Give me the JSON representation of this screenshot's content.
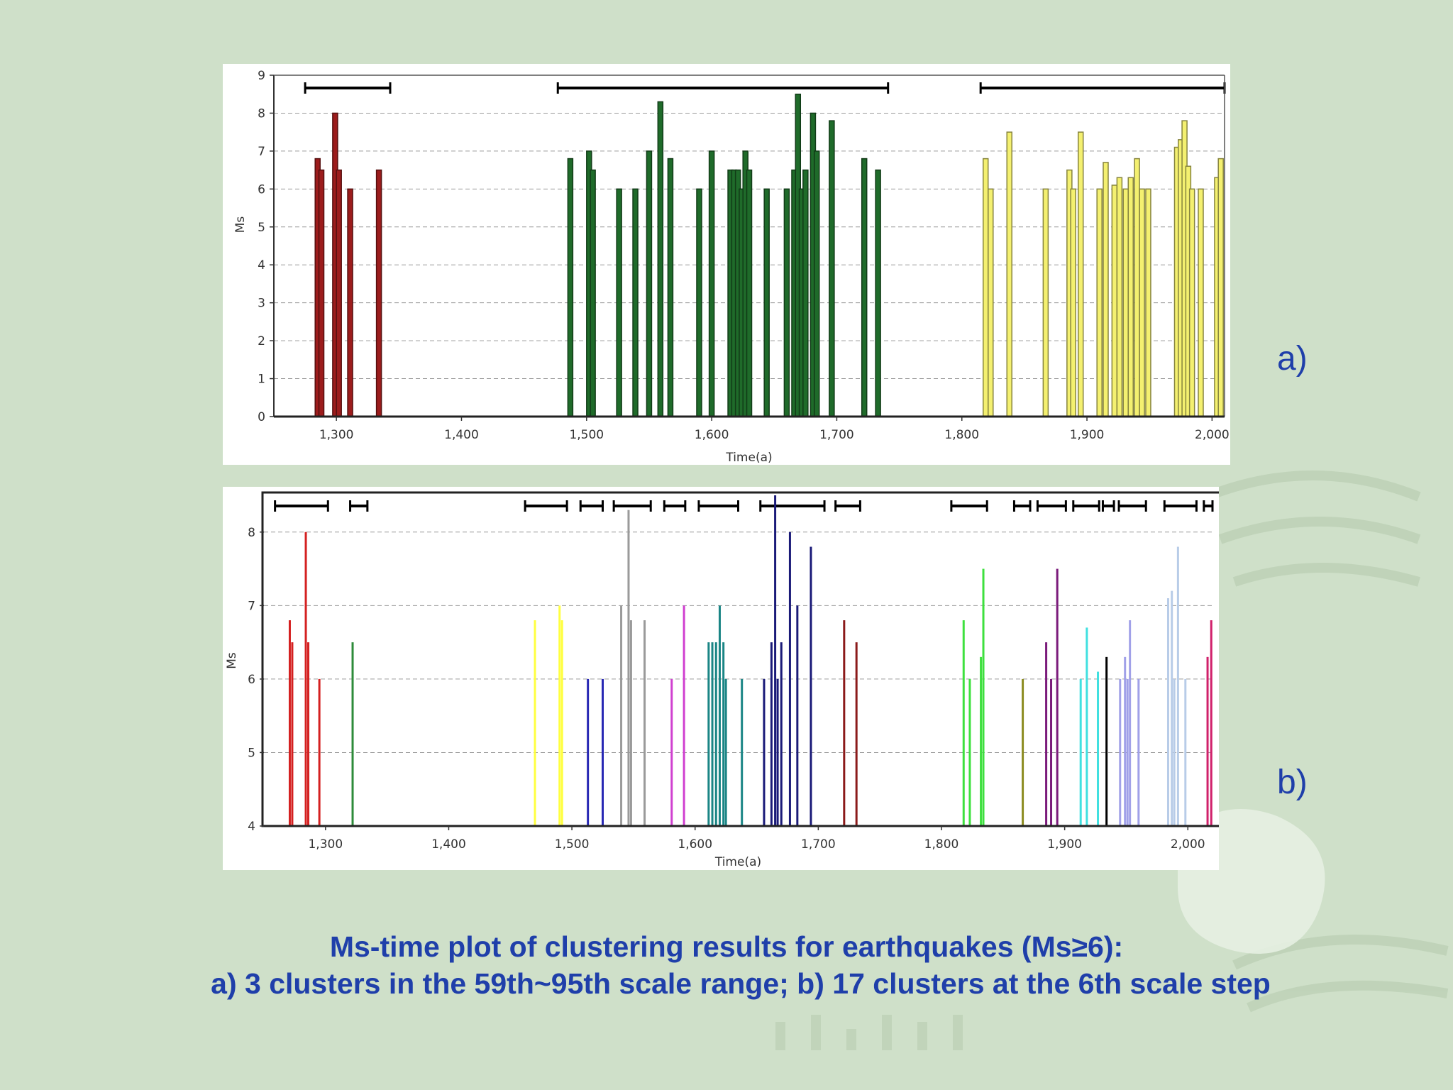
{
  "caption": {
    "line1": "Ms-time plot of clustering results for earthquakes (Ms≥6):",
    "line2": "a) 3 clusters in the 59th~95th scale range; b) 17 clusters at the 6th scale step"
  },
  "panel_labels": {
    "a": "a)",
    "b": "b)"
  },
  "chart_data": [
    {
      "type": "bar",
      "id": "a",
      "xlabel": "Time(a)",
      "ylabel": "Ms",
      "xlim": [
        1250,
        2010
      ],
      "ylim": [
        0,
        9
      ],
      "x_ticks": [
        1300,
        1400,
        1500,
        1600,
        1700,
        1800,
        1900,
        2000
      ],
      "x_tick_labels": [
        "1,300",
        "1,400",
        "1,500",
        "1,600",
        "1,700",
        "1,800",
        "1,900",
        "2,000"
      ],
      "y_ticks": [
        0,
        1,
        2,
        3,
        4,
        5,
        6,
        7,
        8,
        9
      ],
      "y_tick_labels": [
        "0",
        "1",
        "2",
        "3",
        "4",
        "5",
        "6",
        "7",
        "8",
        "9"
      ],
      "grid": "horizontal dashed",
      "legend": "none",
      "cluster_ranges": [
        [
          1275,
          1343
        ],
        [
          1477,
          1741
        ],
        [
          1815,
          2010
        ]
      ],
      "series": [
        {
          "color": "#9c1c1c",
          "x": [
            1285,
            1288,
            1299,
            1302,
            1311,
            1334
          ],
          "y": [
            6.8,
            6.5,
            8.0,
            6.5,
            6.0,
            6.5
          ]
        },
        {
          "color": "#1f6b2a",
          "x": [
            1487,
            1502,
            1505,
            1526,
            1539,
            1550,
            1559,
            1567,
            1590,
            1600,
            1615,
            1618,
            1621,
            1624,
            1627,
            1630,
            1644,
            1660,
            1666,
            1669,
            1672,
            1675,
            1681,
            1684,
            1696,
            1722,
            1733
          ],
          "y": [
            6.8,
            7.0,
            6.5,
            6.0,
            6.0,
            7.0,
            8.3,
            6.8,
            6.0,
            7.0,
            6.5,
            6.5,
            6.5,
            6.0,
            7.0,
            6.5,
            6.0,
            6.0,
            6.5,
            8.5,
            6.0,
            6.5,
            8.0,
            7.0,
            7.8,
            6.8,
            6.5
          ]
        },
        {
          "color": "#f4f070",
          "x": [
            1819,
            1823,
            1838,
            1867,
            1886,
            1889,
            1895,
            1910,
            1915,
            1922,
            1926,
            1931,
            1935,
            1940,
            1944,
            1949,
            1972,
            1975,
            1978,
            1981,
            1984,
            1991,
            2004,
            2007
          ],
          "y": [
            6.8,
            6.0,
            7.5,
            6.0,
            6.5,
            6.0,
            7.5,
            6.0,
            6.7,
            6.1,
            6.3,
            6.0,
            6.3,
            6.8,
            6.0,
            6.0,
            7.1,
            7.3,
            7.8,
            6.6,
            6.0,
            6.0,
            6.3,
            6.8
          ]
        }
      ]
    },
    {
      "type": "bar",
      "id": "b",
      "xlabel": "Time(a)",
      "ylabel": "Ms",
      "xlim": [
        1250,
        2020
      ],
      "ylim": [
        4,
        8.5
      ],
      "x_ticks": [
        1300,
        1400,
        1500,
        1600,
        1700,
        1800,
        1900,
        2000
      ],
      "x_tick_labels": [
        "1,300",
        "1,400",
        "1,500",
        "1,600",
        "1,700",
        "1,800",
        "1,900",
        "2,000"
      ],
      "y_ticks": [
        4,
        5,
        6,
        7,
        8
      ],
      "y_tick_labels": [
        "4",
        "5",
        "6",
        "7",
        "8"
      ],
      "grid": "horizontal dashed",
      "legend": "none",
      "cluster_ranges": [
        [
          1259,
          1302
        ],
        [
          1320,
          1334
        ],
        [
          1462,
          1496
        ],
        [
          1507,
          1525
        ],
        [
          1534,
          1564
        ],
        [
          1575,
          1592
        ],
        [
          1603,
          1635
        ],
        [
          1653,
          1705
        ],
        [
          1714,
          1734
        ],
        [
          1808,
          1837
        ],
        [
          1859,
          1872
        ],
        [
          1878,
          1901
        ],
        [
          1907,
          1928
        ],
        [
          1931,
          1940
        ],
        [
          1944,
          1966
        ],
        [
          1981,
          2007
        ],
        [
          2013,
          2020
        ]
      ],
      "series": [
        {
          "color": "#d42020",
          "x": [
            1271,
            1273,
            1284,
            1286,
            1295
          ],
          "y": [
            6.8,
            6.5,
            8.0,
            6.5,
            6.0
          ]
        },
        {
          "color": "#2e8b3a",
          "x": [
            1322
          ],
          "y": [
            6.5
          ]
        },
        {
          "color": "#ffff40",
          "x": [
            1470,
            1490,
            1492
          ],
          "y": [
            6.8,
            7.0,
            6.8
          ]
        },
        {
          "color": "#2828b4",
          "x": [
            1513,
            1525
          ],
          "y": [
            6.0,
            6.0
          ]
        },
        {
          "color": "#9a9a9a",
          "x": [
            1540,
            1546,
            1548,
            1559
          ],
          "y": [
            7.0,
            8.3,
            6.8,
            6.8
          ]
        },
        {
          "color": "#d040d0",
          "x": [
            1581,
            1591
          ],
          "y": [
            6.0,
            7.0
          ]
        },
        {
          "color": "#1a8585",
          "x": [
            1611,
            1614,
            1617,
            1620,
            1623,
            1625,
            1638
          ],
          "y": [
            6.5,
            6.5,
            6.5,
            7.0,
            6.5,
            6.0,
            6.0
          ]
        },
        {
          "color": "#1a1a78",
          "x": [
            1656,
            1662,
            1665,
            1667,
            1670,
            1677,
            1683,
            1694
          ],
          "y": [
            6.0,
            6.5,
            8.5,
            6.0,
            6.5,
            8.0,
            7.0,
            7.8
          ]
        },
        {
          "color": "#8b1a1a",
          "x": [
            1721,
            1731
          ],
          "y": [
            6.8,
            6.5
          ]
        },
        {
          "color": "#3ee03e",
          "x": [
            1818,
            1823,
            1832,
            1834
          ],
          "y": [
            6.8,
            6.0,
            6.3,
            7.5
          ]
        },
        {
          "color": "#8b8b20",
          "x": [
            1866
          ],
          "y": [
            6.0
          ]
        },
        {
          "color": "#7a1a7a",
          "x": [
            1885,
            1889,
            1894
          ],
          "y": [
            6.5,
            6.0,
            7.5
          ]
        },
        {
          "color": "#40e0e0",
          "x": [
            1913,
            1918,
            1927
          ],
          "y": [
            6.0,
            6.7,
            6.1
          ]
        },
        {
          "color": "#000000",
          "x": [
            1934
          ],
          "y": [
            6.3
          ]
        },
        {
          "color": "#a0a0e8",
          "x": [
            1945,
            1949,
            1951,
            1953,
            1960
          ],
          "y": [
            6.0,
            6.3,
            6.0,
            6.8,
            6.0
          ]
        },
        {
          "color": "#b8cce8",
          "x": [
            1984,
            1987,
            1989,
            1992,
            1998
          ],
          "y": [
            7.1,
            7.2,
            6.0,
            7.8,
            6.0
          ]
        },
        {
          "color": "#d0206a",
          "x": [
            2016,
            2019
          ],
          "y": [
            6.3,
            6.8
          ]
        }
      ]
    }
  ]
}
